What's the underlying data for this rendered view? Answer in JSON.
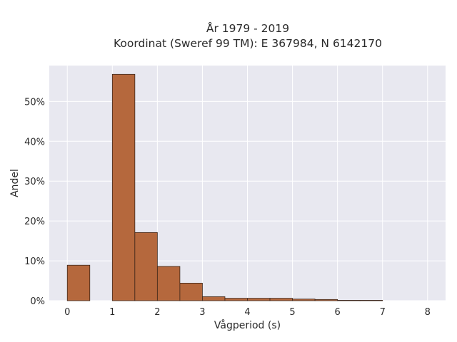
{
  "chart_data": {
    "type": "bar",
    "title_line1": "År 1979 - 2019",
    "title_line2": "Koordinat (Sweref 99 TM): E 367984, N 6142170",
    "xlabel": "Vågperiod (s)",
    "ylabel": "Andel",
    "x_ticks": [
      "0",
      "1",
      "2",
      "3",
      "4",
      "5",
      "6",
      "7",
      "8"
    ],
    "y_ticks": [
      "0%",
      "10%",
      "20%",
      "30%",
      "40%",
      "50%"
    ],
    "xlim": [
      -0.4,
      8.4
    ],
    "ylim": [
      0,
      0.59
    ],
    "bin_width": 0.5,
    "bins": [
      {
        "x0": 0.0,
        "value": 0.089
      },
      {
        "x0": 0.5,
        "value": 0.0
      },
      {
        "x0": 1.0,
        "value": 0.568
      },
      {
        "x0": 1.5,
        "value": 0.171
      },
      {
        "x0": 2.0,
        "value": 0.086
      },
      {
        "x0": 2.5,
        "value": 0.044
      },
      {
        "x0": 3.0,
        "value": 0.01
      },
      {
        "x0": 3.5,
        "value": 0.006
      },
      {
        "x0": 4.0,
        "value": 0.006
      },
      {
        "x0": 4.5,
        "value": 0.006
      },
      {
        "x0": 5.0,
        "value": 0.004
      },
      {
        "x0": 5.5,
        "value": 0.003
      },
      {
        "x0": 6.0,
        "value": 0.001
      },
      {
        "x0": 6.5,
        "value": 0.001
      }
    ],
    "colors": {
      "bar_fill": "#b5683d",
      "bar_edge": "#3a2418",
      "plot_bg": "#e8e8f0",
      "grid": "#ffffff"
    },
    "grid": true
  }
}
